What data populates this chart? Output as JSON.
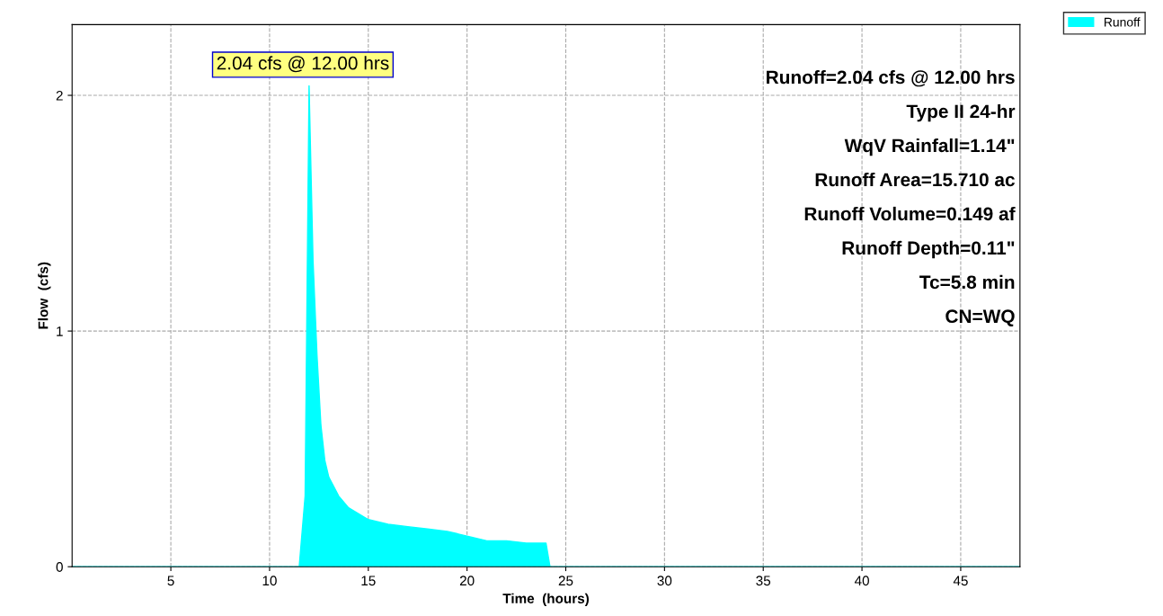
{
  "chart_data": {
    "type": "area",
    "xlabel": "Time  (hours)",
    "ylabel": "Flow  (cfs)",
    "x": [
      0,
      11.5,
      11.8,
      12.0,
      12.2,
      12.4,
      12.6,
      12.8,
      13.0,
      13.5,
      14,
      15,
      16,
      17,
      18,
      19,
      20,
      21,
      22,
      23,
      24,
      24.2,
      25,
      48
    ],
    "series": [
      {
        "name": "Runoff",
        "color": "#00ffff",
        "values": [
          0,
          0,
          0.3,
          2.04,
          1.3,
          0.9,
          0.6,
          0.45,
          0.38,
          0.3,
          0.25,
          0.2,
          0.18,
          0.17,
          0.16,
          0.15,
          0.13,
          0.11,
          0.11,
          0.1,
          0.1,
          0,
          0,
          0
        ]
      }
    ],
    "xlim": [
      0,
      48
    ],
    "xticks": [
      5,
      10,
      15,
      20,
      25,
      30,
      35,
      40,
      45
    ],
    "ylim": [
      0,
      2.3
    ],
    "yticks": [
      0,
      1,
      2
    ],
    "grid": true,
    "legend": "top right",
    "annotations": [
      {
        "text": "2.04 cfs @ 12.00 hrs",
        "x": 12.0,
        "y": 2.04
      },
      "Runoff=2.04 cfs @ 12.00 hrs",
      "Type II 24-hr",
      "WqV Rainfall=1.14\"",
      "Runoff Area=15.710 ac",
      "Runoff Volume=0.149 af",
      "Runoff Depth=0.11\"",
      "Tc=5.8 min",
      "CN=WQ"
    ]
  }
}
